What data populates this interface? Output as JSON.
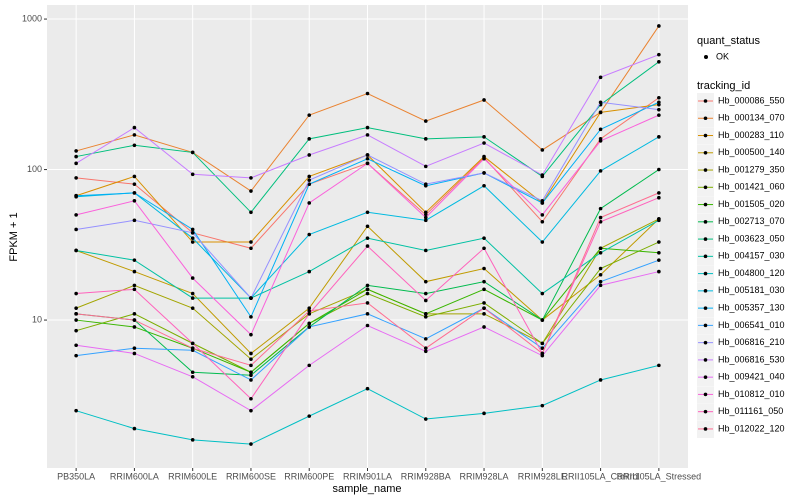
{
  "chart_data": {
    "type": "line",
    "log_y": true,
    "grid": true,
    "legend_position": "right",
    "x_label": "sample_name",
    "y_label": "FPKM + 1",
    "shape_legend_title": "quant_status",
    "shape_legend_label": "OK",
    "legend_title": "tracking_id",
    "categories": [
      "PB350LA",
      "RRIM600LA",
      "RRIM600LE",
      "RRIM600SE",
      "RRIM600PE",
      "RRIM901LA",
      "RRIM928BA",
      "RRIM928LA",
      "RRIM928LE",
      "RRII105LA_Control",
      "RRII105LA_Stressed"
    ],
    "ylim": [
      1.04,
      1240
    ],
    "yticks": [
      10,
      100,
      1000
    ],
    "series": [
      {
        "name": "Hb_000086_550",
        "color": "#F8766D",
        "values": [
          88,
          80,
          38,
          30,
          80,
          110,
          50,
          120,
          45,
          160,
          300
        ]
      },
      {
        "name": "Hb_000134_070",
        "color": "#EA8331",
        "values": [
          133,
          170,
          130,
          72,
          230,
          320,
          210,
          290,
          135,
          240,
          900
        ]
      },
      {
        "name": "Hb_000283_110",
        "color": "#D89000",
        "values": [
          67,
          90,
          33,
          33,
          90,
          125,
          52,
          122,
          60,
          240,
          270
        ]
      },
      {
        "name": "Hb_000500_140",
        "color": "#C09B00",
        "values": [
          29,
          21,
          15,
          6,
          12,
          42,
          18,
          22,
          10,
          20,
          47
        ]
      },
      {
        "name": "Hb_001279_350",
        "color": "#A3A500",
        "values": [
          12,
          17,
          12,
          5.5,
          11,
          16,
          11,
          11,
          7,
          30,
          47
        ]
      },
      {
        "name": "Hb_001421_060",
        "color": "#7CAE00",
        "values": [
          8.5,
          11,
          7,
          4.5,
          9.5,
          15,
          10.5,
          13,
          7,
          22,
          33
        ]
      },
      {
        "name": "Hb_001505_020",
        "color": "#39B600",
        "values": [
          10,
          9,
          6.5,
          4.5,
          9.5,
          16,
          11,
          16,
          10,
          30,
          28
        ]
      },
      {
        "name": "Hb_002713_070",
        "color": "#00BB4E",
        "values": [
          11,
          10,
          4.5,
          4.3,
          9,
          17,
          15,
          18,
          10,
          55,
          100
        ]
      },
      {
        "name": "Hb_003623_050",
        "color": "#00BF7D",
        "values": [
          122,
          145,
          130,
          52,
          160,
          190,
          160,
          165,
          90,
          270,
          520
        ]
      },
      {
        "name": "Hb_004157_030",
        "color": "#00C1A3",
        "values": [
          29,
          25,
          14,
          14,
          21,
          35,
          29,
          35,
          15,
          28,
          46
        ]
      },
      {
        "name": "Hb_004800_120",
        "color": "#00BFC4",
        "values": [
          2.5,
          1.9,
          1.6,
          1.5,
          2.3,
          3.5,
          2.2,
          2.4,
          2.7,
          4,
          5
        ]
      },
      {
        "name": "Hb_005181_030",
        "color": "#00BAE0",
        "values": [
          66,
          70,
          35,
          14,
          37,
          52,
          46,
          78,
          33,
          98,
          165
        ]
      },
      {
        "name": "Hb_005357_130",
        "color": "#00B0F6",
        "values": [
          67,
          70,
          40,
          10.5,
          80,
          118,
          78,
          95,
          60,
          185,
          280
        ]
      },
      {
        "name": "Hb_006541_010",
        "color": "#35A2FF",
        "values": [
          5.8,
          6.5,
          6.3,
          4,
          9,
          11,
          7.5,
          12,
          6.5,
          18,
          25
        ]
      },
      {
        "name": "Hb_006816_210",
        "color": "#9590FF",
        "values": [
          40,
          46,
          38,
          14,
          85,
          125,
          80,
          95,
          62,
          280,
          250
        ]
      },
      {
        "name": "Hb_006816_530",
        "color": "#C77CFF",
        "values": [
          110,
          190,
          93,
          88,
          125,
          170,
          105,
          150,
          92,
          410,
          580
        ]
      },
      {
        "name": "Hb_009421_040",
        "color": "#E76BF3",
        "values": [
          6.8,
          6,
          4.2,
          2.5,
          5,
          9.2,
          6.2,
          9,
          5.8,
          17,
          21
        ]
      },
      {
        "name": "Hb_010812_010",
        "color": "#FA62DB",
        "values": [
          50,
          62,
          19,
          8,
          60,
          110,
          48,
          118,
          50,
          155,
          230
        ]
      },
      {
        "name": "Hb_011161_050",
        "color": "#FF62BC",
        "values": [
          15,
          16,
          7,
          3,
          11,
          31,
          13.5,
          30,
          6,
          45,
          65
        ]
      },
      {
        "name": "Hb_012022_120",
        "color": "#FF6C91",
        "values": [
          11,
          10,
          6.5,
          5,
          11.5,
          13,
          6.5,
          12,
          6,
          48,
          70
        ]
      }
    ]
  }
}
